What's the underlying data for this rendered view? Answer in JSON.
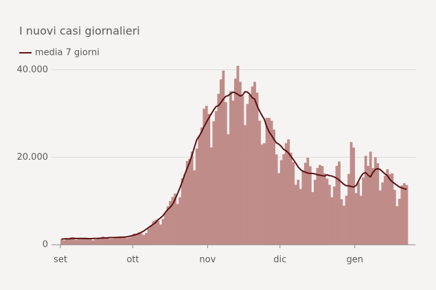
{
  "chart_data": {
    "type": "bar_line",
    "title": "I nuovi casi giornalieri",
    "categories": [
      "set",
      null,
      null,
      null,
      null,
      null,
      null,
      null,
      null,
      null,
      null,
      null,
      null,
      null,
      null,
      null,
      null,
      null,
      null,
      null,
      null,
      null,
      null,
      null,
      null,
      null,
      null,
      null,
      null,
      null,
      "ott",
      null,
      null,
      null,
      null,
      null,
      null,
      null,
      null,
      null,
      null,
      null,
      null,
      null,
      null,
      null,
      null,
      null,
      null,
      null,
      null,
      null,
      null,
      null,
      null,
      null,
      null,
      null,
      null,
      null,
      null,
      "nov",
      null,
      null,
      null,
      null,
      null,
      null,
      null,
      null,
      null,
      null,
      null,
      null,
      null,
      null,
      null,
      null,
      null,
      null,
      null,
      null,
      null,
      null,
      null,
      null,
      null,
      null,
      null,
      null,
      null,
      "dic",
      null,
      null,
      null,
      null,
      null,
      null,
      null,
      null,
      null,
      null,
      null,
      null,
      null,
      null,
      null,
      null,
      null,
      null,
      null,
      null,
      null,
      null,
      null,
      null,
      null,
      null,
      null,
      null,
      null,
      null,
      "gen",
      null,
      null,
      null,
      null,
      null,
      null,
      null,
      null,
      null,
      null,
      null,
      null,
      null,
      null,
      null,
      null,
      null,
      null,
      null,
      null,
      null
    ],
    "bars": {
      "color": "#c08c89",
      "values": [
        1365,
        996,
        1326,
        1397,
        1732,
        1695,
        1108,
        1370,
        1434,
        1597,
        1616,
        1501,
        1458,
        1008,
        1229,
        1452,
        1585,
        1907,
        1638,
        1587,
        1350,
        1392,
        1640,
        1786,
        1912,
        1869,
        1766,
        1494,
        1648,
        1851,
        2548,
        2499,
        2844,
        2578,
        2257,
        2677,
        3678,
        4458,
        5372,
        5724,
        5456,
        4619,
        5901,
        7332,
        8804,
        10010,
        10925,
        11705,
        9338,
        10874,
        15199,
        16079,
        19143,
        19644,
        21273,
        17012,
        21994,
        24991,
        26831,
        31084,
        31758,
        29907,
        22253,
        28244,
        30550,
        34505,
        37809,
        39811,
        32616,
        25271,
        35098,
        32961,
        37978,
        40902,
        37255,
        33979,
        27354,
        32191,
        34283,
        36176,
        37242,
        34767,
        28337,
        22930,
        23232,
        29003,
        29003,
        28352,
        26323,
        20648,
        16377,
        19350,
        20709,
        23225,
        24099,
        21052,
        18887,
        13720,
        14842,
        12756,
        16999,
        18727,
        19903,
        17938,
        12030,
        14844,
        17572,
        18236,
        17992,
        16308,
        15104,
        13720,
        10872,
        13318,
        18040,
        19037,
        10407,
        8913,
        11212,
        16202,
        23477,
        22214,
        11831,
        14245,
        11212,
        15378,
        20331,
        18020,
        21273,
        17533,
        19978,
        18627,
        12415,
        14242,
        15774,
        17246,
        16146,
        16310,
        12545,
        8825,
        10497,
        13571,
        14078,
        13633
      ]
    },
    "series": [
      {
        "name": "media 7 giorni",
        "color": "#5b0f10",
        "values": [
          1300,
          1330,
          1380,
          1350,
          1410,
          1450,
          1430,
          1440,
          1450,
          1420,
          1430,
          1410,
          1410,
          1420,
          1450,
          1480,
          1500,
          1520,
          1560,
          1590,
          1640,
          1650,
          1660,
          1700,
          1700,
          1720,
          1750,
          1800,
          1920,
          2050,
          2200,
          2360,
          2550,
          2830,
          3120,
          3520,
          3900,
          4290,
          4700,
          5100,
          5730,
          6150,
          6650,
          7390,
          8070,
          8560,
          9250,
          10370,
          11590,
          12950,
          14440,
          16050,
          17450,
          18800,
          20400,
          22200,
          24000,
          24800,
          25800,
          27000,
          28000,
          29000,
          29900,
          30800,
          31600,
          31800,
          32500,
          33300,
          33900,
          34100,
          34500,
          34900,
          34700,
          34400,
          34000,
          34200,
          35000,
          34900,
          34400,
          33600,
          33300,
          31800,
          30600,
          29600,
          28700,
          27000,
          25800,
          25000,
          24100,
          23300,
          23000,
          22500,
          21800,
          21500,
          21000,
          20200,
          19500,
          18700,
          17800,
          17200,
          16800,
          16600,
          16400,
          16300,
          16300,
          16200,
          16000,
          15900,
          15800,
          15700,
          16000,
          15800,
          15700,
          15500,
          15200,
          14800,
          14300,
          13800,
          13500,
          13500,
          13300,
          13200,
          13500,
          14500,
          15600,
          16300,
          16500,
          15900,
          15500,
          16500,
          17200,
          17400,
          17200,
          16700,
          16200,
          15800,
          15000,
          14400,
          14000,
          13600,
          13200,
          13000,
          12800,
          12700
        ]
      }
    ],
    "ylim": [
      0,
      42000
    ],
    "yticks": [
      0,
      {
        "value": 20000,
        "label": "20.000"
      },
      {
        "value": 40000,
        "label": "40.000"
      }
    ],
    "grid": true
  }
}
